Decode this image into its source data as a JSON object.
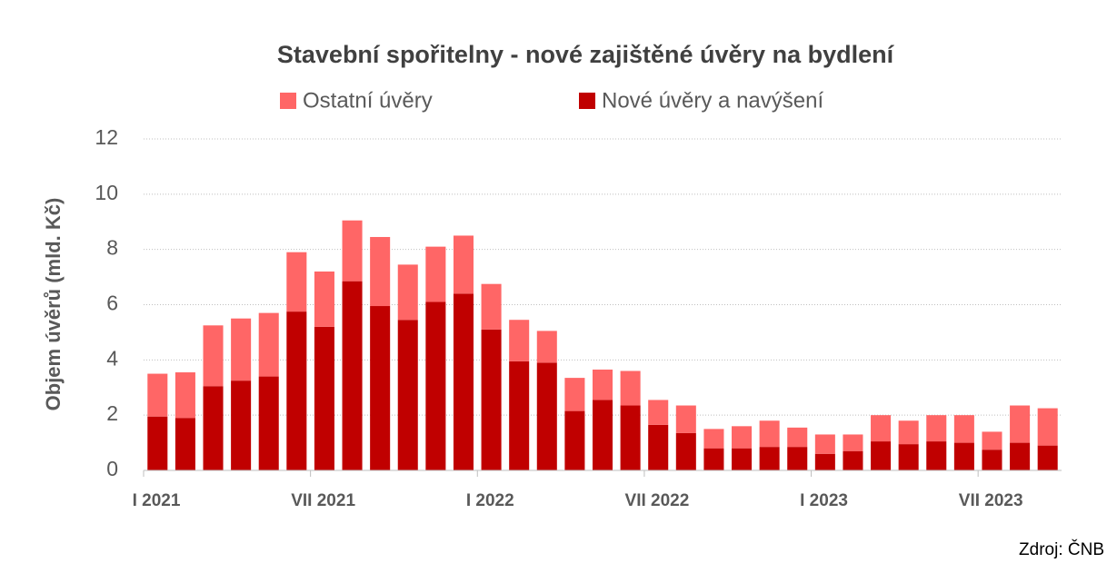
{
  "chart_data": {
    "type": "stacked_bar",
    "title": "Stavební spořitelny - nové zajištěné úvěry na bydlení",
    "y_label": "Objem úvěrů (mld. Kč)",
    "source": "Zdroj: ČNB",
    "categories": [
      "I 2021",
      null,
      null,
      null,
      null,
      null,
      "VII 2021",
      null,
      null,
      null,
      null,
      null,
      "I 2022",
      null,
      null,
      null,
      null,
      null,
      "VII 2022",
      null,
      null,
      null,
      null,
      null,
      "I 2023",
      null,
      null,
      null,
      null,
      null,
      "VII 2023",
      null,
      null
    ],
    "series": [
      {
        "name": "Nové úvěry a navýšení",
        "color": "#c00000",
        "values": [
          1.95,
          1.9,
          3.05,
          3.25,
          3.4,
          5.75,
          5.2,
          6.85,
          5.95,
          5.45,
          6.1,
          6.4,
          5.1,
          3.95,
          3.9,
          2.15,
          2.55,
          2.35,
          1.65,
          1.35,
          0.8,
          0.8,
          0.85,
          0.85,
          0.6,
          0.7,
          1.05,
          0.95,
          1.05,
          1.0,
          0.75,
          1.0,
          0.9
        ]
      },
      {
        "name": "Ostatní úvěry",
        "color": "#ff6666",
        "values": [
          1.55,
          1.65,
          2.2,
          2.25,
          2.3,
          2.15,
          2.0,
          2.2,
          2.5,
          2.0,
          2.0,
          2.1,
          1.65,
          1.5,
          1.15,
          1.2,
          1.1,
          1.25,
          0.9,
          1.0,
          0.7,
          0.8,
          0.95,
          0.7,
          0.7,
          0.6,
          0.95,
          0.85,
          0.95,
          1.0,
          0.65,
          1.35,
          1.35
        ]
      }
    ],
    "ylim": [
      0,
      12
    ],
    "yticks": [
      0,
      2,
      4,
      6,
      8,
      10,
      12
    ],
    "grid": true
  }
}
